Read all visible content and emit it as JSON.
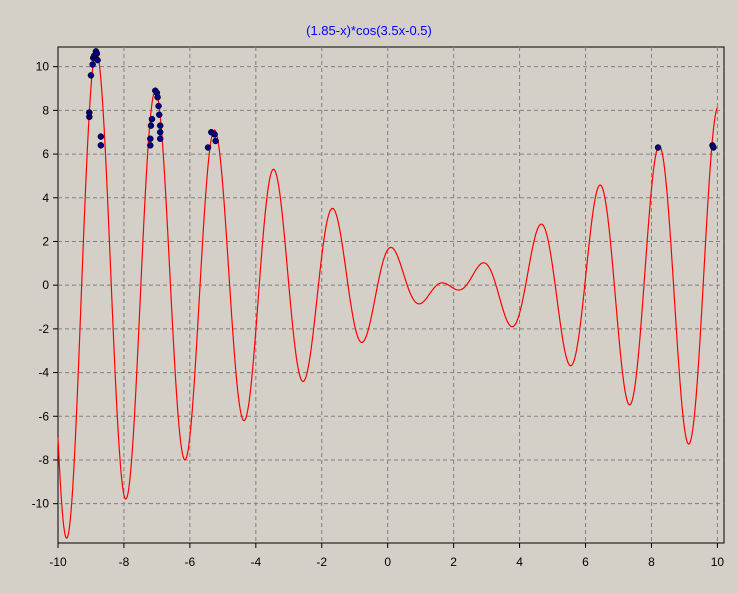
{
  "chart_data": {
    "type": "line",
    "title": "(1.85-x)*cos(3.5x-0.5)",
    "xlabel": "",
    "ylabel": "",
    "xlim": [
      -10,
      10.2
    ],
    "ylim": [
      -11.8,
      10.9
    ],
    "x_ticks": [
      -10,
      -8,
      -6,
      -4,
      -2,
      0,
      2,
      4,
      6,
      8,
      10
    ],
    "y_ticks": [
      -10,
      -8,
      -6,
      -4,
      -2,
      0,
      2,
      4,
      6,
      8,
      10
    ],
    "grid": true,
    "legend": "none",
    "function": {
      "a": 1.85,
      "b": 3.5,
      "c": -0.5,
      "x_range": [
        -10,
        10
      ]
    },
    "series": [
      {
        "kind": "line",
        "samples": 800,
        "color": "#ff0000"
      },
      {
        "kind": "scatter",
        "color": "#000080",
        "points": [
          [
            -9.05,
            7.7
          ],
          [
            -9.05,
            7.9
          ],
          [
            -9.0,
            9.6
          ],
          [
            -8.95,
            10.1
          ],
          [
            -8.93,
            10.4
          ],
          [
            -8.9,
            10.5
          ],
          [
            -8.85,
            10.7
          ],
          [
            -8.82,
            10.6
          ],
          [
            -8.8,
            10.3
          ],
          [
            -8.7,
            6.8
          ],
          [
            -8.7,
            6.4
          ],
          [
            -7.2,
            6.4
          ],
          [
            -7.2,
            6.7
          ],
          [
            -7.18,
            7.3
          ],
          [
            -7.15,
            7.6
          ],
          [
            -7.05,
            8.9
          ],
          [
            -7.0,
            8.8
          ],
          [
            -6.98,
            8.6
          ],
          [
            -6.95,
            8.2
          ],
          [
            -6.93,
            7.8
          ],
          [
            -6.9,
            7.3
          ],
          [
            -6.9,
            7.0
          ],
          [
            -6.9,
            6.7
          ],
          [
            -5.45,
            6.3
          ],
          [
            -5.35,
            7.0
          ],
          [
            -5.25,
            6.9
          ],
          [
            -5.22,
            6.6
          ],
          [
            8.2,
            6.3
          ],
          [
            9.85,
            6.4
          ],
          [
            9.88,
            6.3
          ]
        ]
      }
    ]
  },
  "colors": {
    "background": "#d4d0c8",
    "plot_area": "#d4d0c8",
    "grid": "#808080",
    "title": "#0000ff",
    "axis": "#000000",
    "curve": "#ff0000",
    "markers": "#000080"
  }
}
